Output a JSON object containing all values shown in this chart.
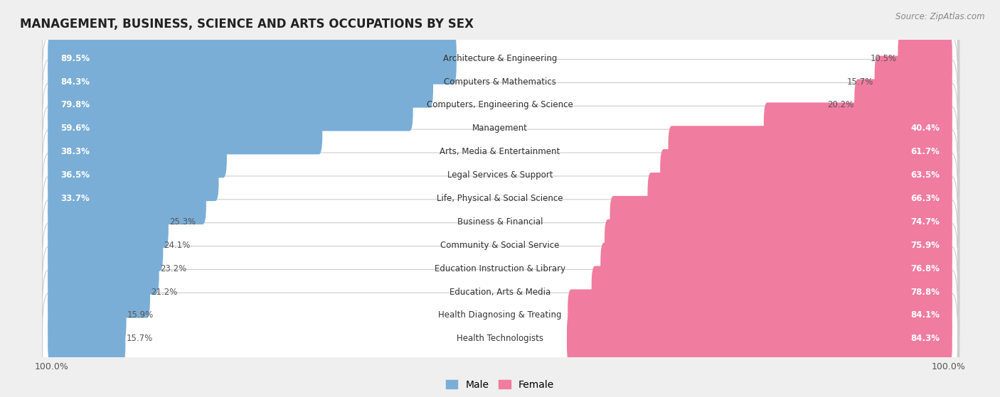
{
  "title": "MANAGEMENT, BUSINESS, SCIENCE AND ARTS OCCUPATIONS BY SEX",
  "source": "Source: ZipAtlas.com",
  "categories": [
    "Architecture & Engineering",
    "Computers & Mathematics",
    "Computers, Engineering & Science",
    "Management",
    "Arts, Media & Entertainment",
    "Legal Services & Support",
    "Life, Physical & Social Science",
    "Business & Financial",
    "Community & Social Service",
    "Education Instruction & Library",
    "Education, Arts & Media",
    "Health Diagnosing & Treating",
    "Health Technologists"
  ],
  "male_pct": [
    89.5,
    84.3,
    79.8,
    59.6,
    38.3,
    36.5,
    33.7,
    25.3,
    24.1,
    23.2,
    21.2,
    15.9,
    15.7
  ],
  "female_pct": [
    10.5,
    15.7,
    20.2,
    40.4,
    61.7,
    63.5,
    66.3,
    74.7,
    75.9,
    76.8,
    78.8,
    84.1,
    84.3
  ],
  "male_color": "#7aaed6",
  "female_color": "#f07ca0",
  "bg_color": "#efefef",
  "row_bg_color": "#ffffff",
  "bar_height": 0.62,
  "title_fontsize": 12,
  "label_fontsize": 8.5,
  "tick_fontsize": 9,
  "legend_fontsize": 10
}
